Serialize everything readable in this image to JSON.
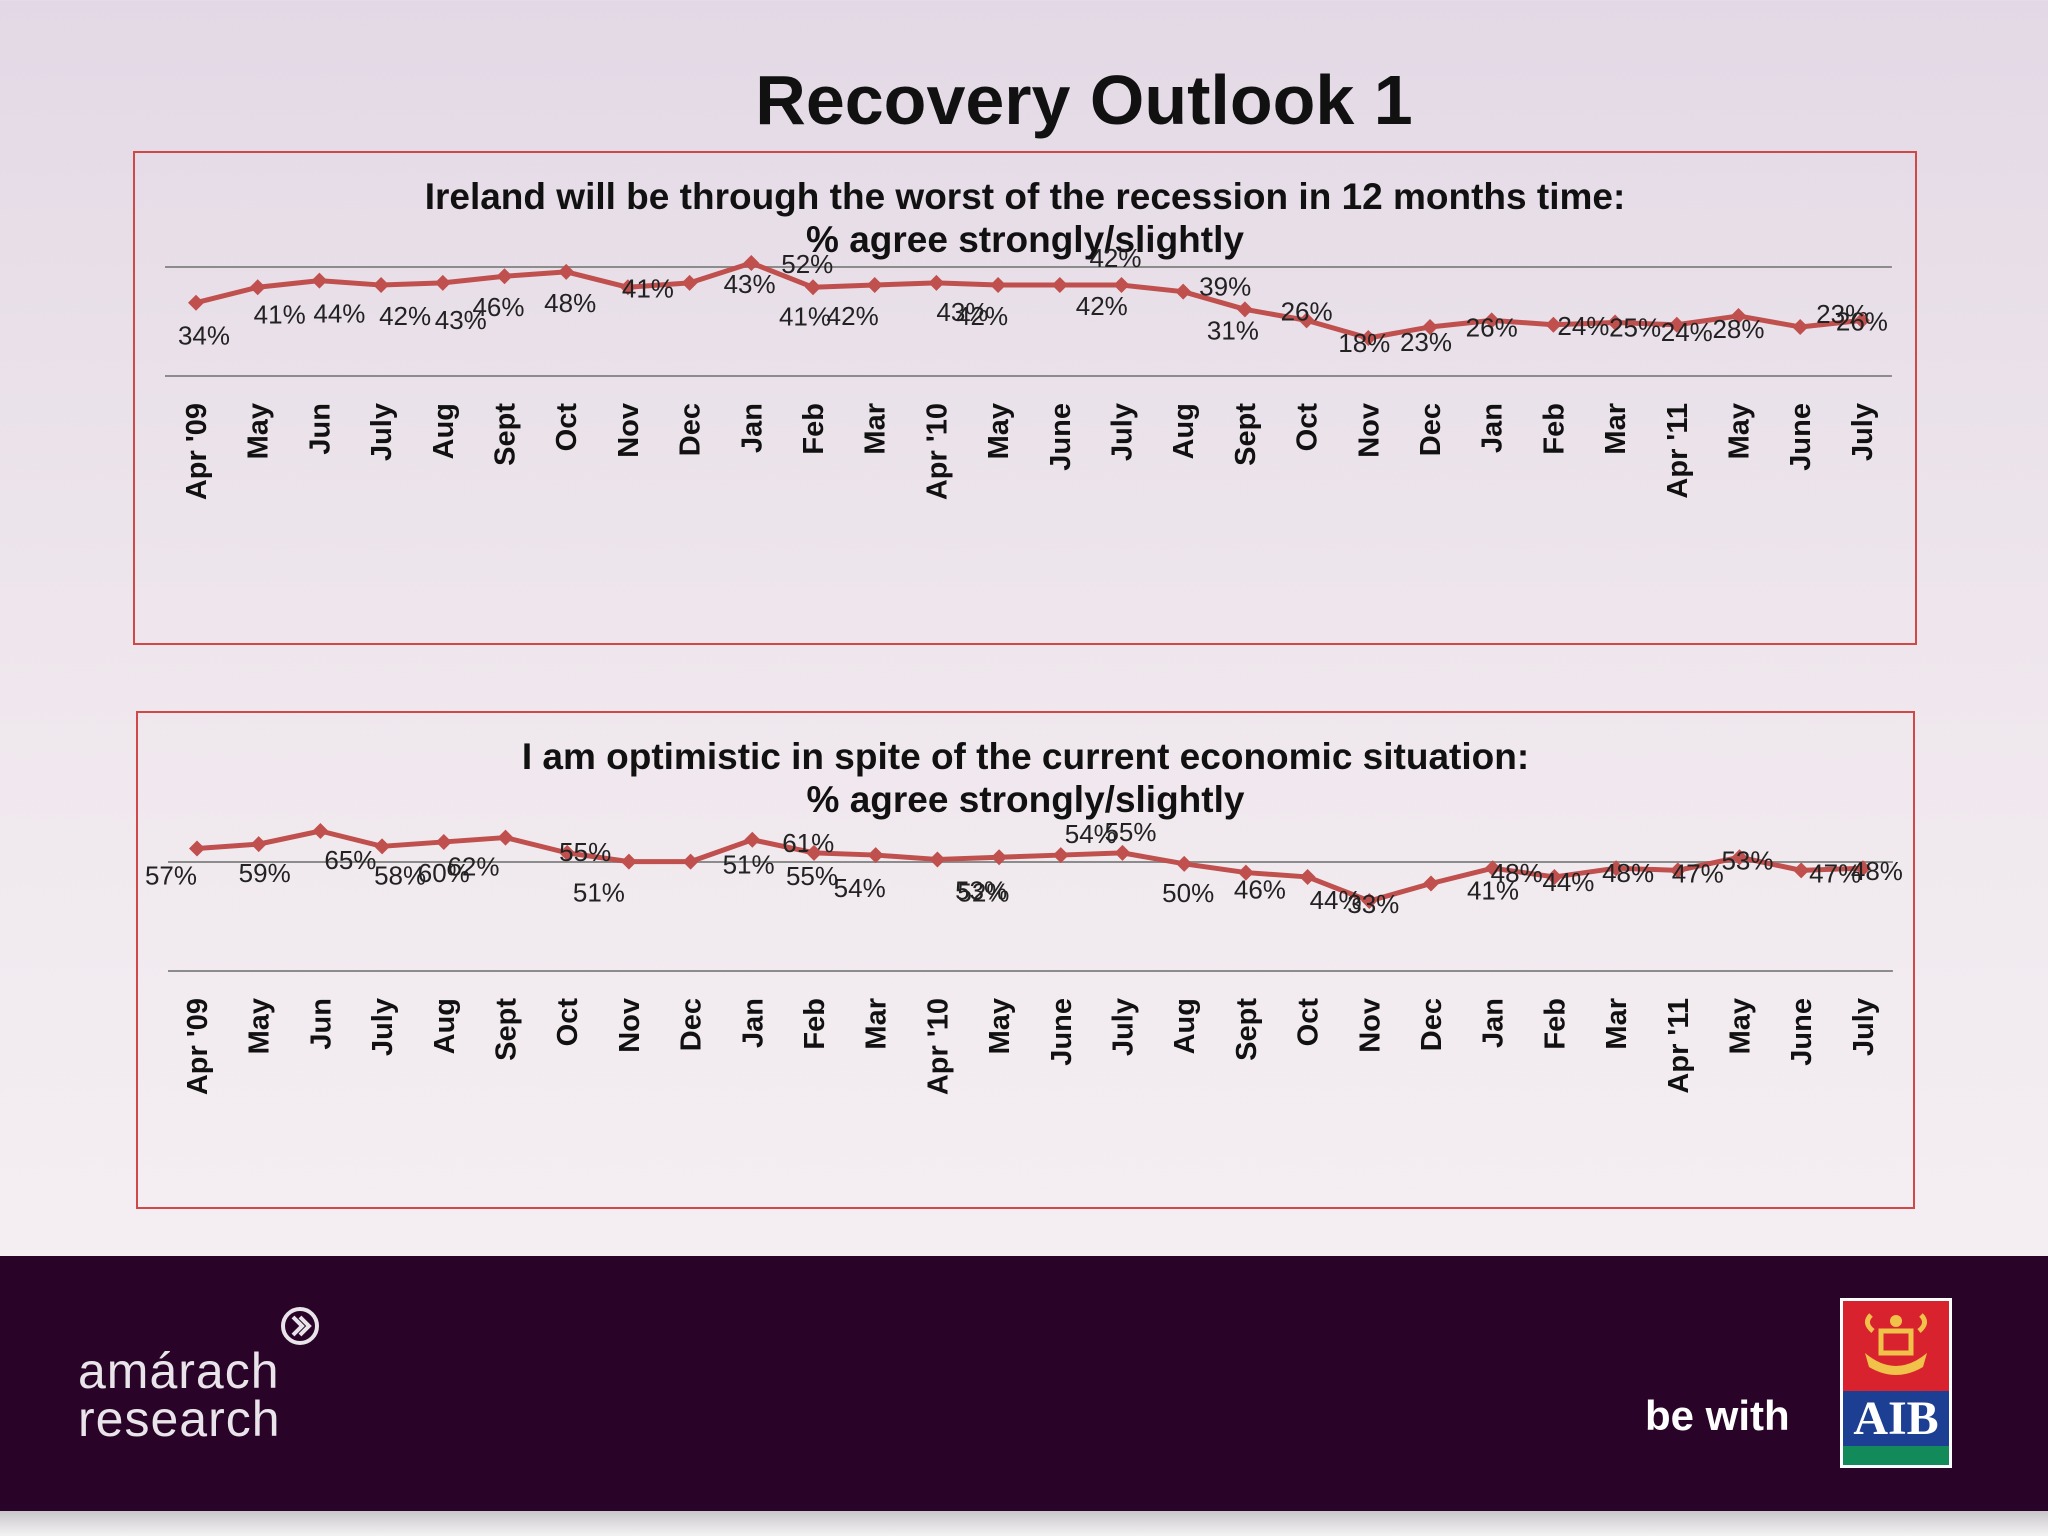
{
  "slide_title": "Recovery Outlook 1",
  "colors": {
    "line": "#c0504d",
    "panel_border": "#d04848",
    "gridline": "#8c8c8c",
    "footer_bg": "#2a0428"
  },
  "footer": {
    "be_with": "be with",
    "aib": "AIB",
    "amarach_line1": "amárach",
    "amarach_line2": "research"
  },
  "chart_data": [
    {
      "type": "line",
      "title_line1": "Ireland will be through the worst of the recession in 12 months time:",
      "title_line2": "% agree strongly/slightly",
      "categories": [
        "Apr '09",
        "May",
        "Jun",
        "July",
        "Aug",
        "Sept",
        "Oct",
        "Nov",
        "Dec",
        "Jan",
        "Feb",
        "Mar",
        "Apr '10",
        "May",
        "June",
        "July",
        "Aug",
        "Sept",
        "Oct",
        "Nov",
        "Dec",
        "Jan",
        "Feb",
        "Mar",
        "Apr '11",
        "May",
        "June",
        "July"
      ],
      "values": [
        34,
        41,
        44,
        42,
        43,
        46,
        48,
        41,
        43,
        52,
        41,
        42,
        43,
        42,
        42,
        42,
        39,
        31,
        26,
        18,
        23,
        26,
        24,
        25,
        24,
        28,
        23,
        26
      ],
      "data_labels": [
        "34%",
        "41%",
        "44%",
        "42%",
        "43%",
        "46%",
        "48%",
        "41%",
        "43%",
        "52%",
        "41%",
        "42%",
        "43%",
        "42%",
        "42%",
        "42%",
        "39%",
        "31%",
        "26%",
        "18%",
        "23%",
        "26%",
        "24%",
        "25%",
        "24%",
        "28%",
        "23%",
        "26%"
      ],
      "grid": true,
      "legend": "none"
    },
    {
      "type": "line",
      "title_line1": "I am optimistic in spite of the current economic situation:",
      "title_line2": "% agree strongly/slightly",
      "categories": [
        "Apr '09",
        "May",
        "Jun",
        "July",
        "Aug",
        "Sept",
        "Oct",
        "Nov",
        "Dec",
        "Jan",
        "Feb",
        "Mar",
        "Apr '10",
        "May",
        "June",
        "July",
        "Aug",
        "Sept",
        "Oct",
        "Nov",
        "Dec",
        "Jan",
        "Feb",
        "Mar",
        "Apr '11",
        "May",
        "June",
        "July"
      ],
      "values": [
        57,
        59,
        65,
        58,
        60,
        62,
        55,
        51,
        51,
        61,
        55,
        54,
        52,
        53,
        54,
        55,
        50,
        46,
        44,
        33,
        41,
        48,
        44,
        48,
        47,
        53,
        47,
        48
      ],
      "data_labels": [
        "57%",
        "59%",
        "65%",
        "58%",
        "60%",
        "62%",
        "55%",
        "51%",
        "51%",
        "61%",
        "55%",
        "54%",
        "52%",
        "53%",
        "54%",
        "55%",
        "50%",
        "46%",
        "44%",
        "33%",
        "41%",
        "48%",
        "44%",
        "48%",
        "47%",
        "53%",
        "47%",
        "48%"
      ],
      "grid": true,
      "legend": "none"
    }
  ]
}
